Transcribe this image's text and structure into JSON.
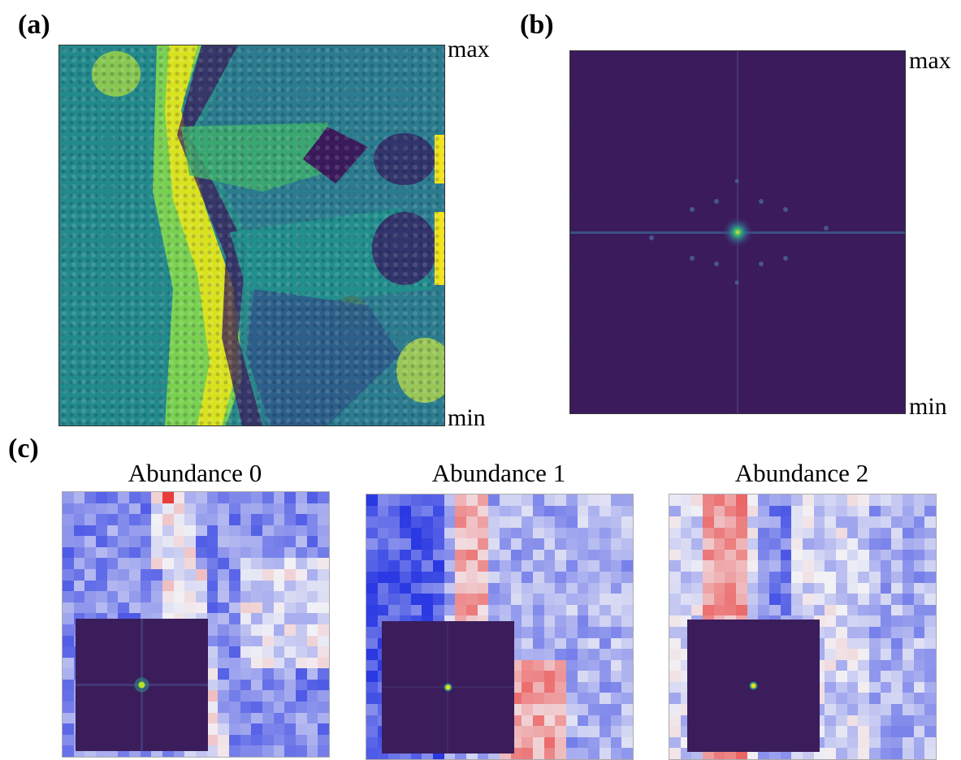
{
  "panels": {
    "a": {
      "label": "(a)",
      "max_label": "max",
      "min_label": "min"
    },
    "b": {
      "label": "(b)",
      "max_label": "max",
      "min_label": "min"
    },
    "c": {
      "label": "(c)"
    }
  },
  "abundance_maps": [
    {
      "title": "Abundance 0",
      "fft_inset_icon": "fft-cross-pattern"
    },
    {
      "title": "Abundance 1",
      "fft_inset_icon": "fft-central-peak"
    },
    {
      "title": "Abundance 2",
      "fft_inset_icon": "fft-central-peak"
    }
  ],
  "colors": {
    "viridis_dark": "#3b1b5c",
    "viridis_teal": "#2a8a8a",
    "viridis_green": "#3fb06a",
    "viridis_yellow": "#f1e31c",
    "bwr_blue": "#2f3fe0",
    "bwr_white": "#f2f2f6",
    "bwr_red": "#e0201a"
  }
}
